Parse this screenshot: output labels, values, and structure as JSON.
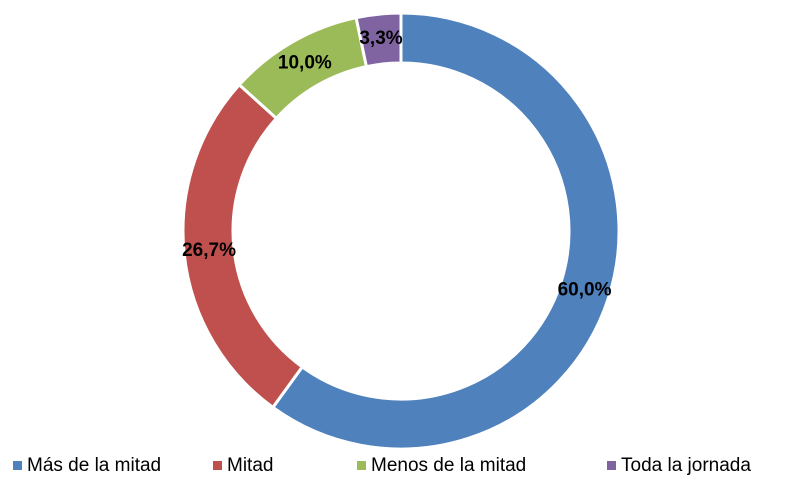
{
  "chart_data": {
    "type": "doughnut",
    "categories": [
      "Más de la mitad",
      "Mitad",
      "Menos de la mitad",
      "Toda la jornada"
    ],
    "values": [
      60.0,
      26.7,
      10.0,
      3.3
    ],
    "value_labels": [
      "60,0%",
      "26,7%",
      "10,0%",
      "3,3%"
    ],
    "colors": [
      "#4f81bd",
      "#c0504d",
      "#9bbb59",
      "#8064a2"
    ],
    "legend": "bottom"
  }
}
